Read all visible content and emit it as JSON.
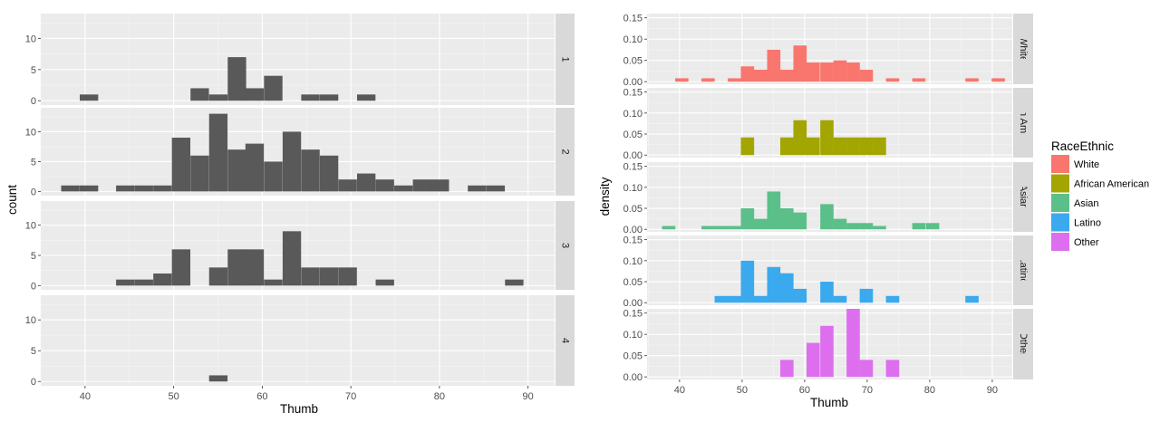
{
  "chart_data": [
    {
      "type": "histogram",
      "facet": "rows",
      "xlabel": "Thumb",
      "ylabel": "count",
      "xlim": [
        35,
        93
      ],
      "ylim": [
        -0.7,
        14
      ],
      "x_ticks": [
        40,
        50,
        60,
        70,
        80,
        90
      ],
      "y_ticks": [
        0,
        5,
        10
      ],
      "bin_width": 2.08,
      "bin_start": 37.3,
      "fill": "#595959",
      "panels": [
        {
          "label": "1",
          "bins": [
            [
              39.4,
              1
            ],
            [
              51.9,
              2
            ],
            [
              54.0,
              1
            ],
            [
              56.1,
              7
            ],
            [
              58.1,
              2
            ],
            [
              60.2,
              4
            ],
            [
              64.4,
              1
            ],
            [
              66.5,
              1
            ],
            [
              70.7,
              1
            ]
          ]
        },
        {
          "label": "2",
          "bins": [
            [
              37.3,
              1
            ],
            [
              39.4,
              1
            ],
            [
              43.5,
              1
            ],
            [
              45.6,
              1
            ],
            [
              47.7,
              1
            ],
            [
              49.8,
              9
            ],
            [
              51.9,
              6
            ],
            [
              54.0,
              13
            ],
            [
              56.1,
              7
            ],
            [
              58.1,
              8
            ],
            [
              60.2,
              5
            ],
            [
              62.3,
              10
            ],
            [
              64.4,
              7
            ],
            [
              66.5,
              6
            ],
            [
              68.6,
              2
            ],
            [
              70.7,
              3
            ],
            [
              72.8,
              2
            ],
            [
              74.9,
              1
            ],
            [
              77.0,
              2
            ],
            [
              79.0,
              2
            ],
            [
              83.2,
              1
            ],
            [
              85.3,
              1
            ]
          ]
        },
        {
          "label": "3",
          "bins": [
            [
              43.5,
              1
            ],
            [
              45.6,
              1
            ],
            [
              47.7,
              2
            ],
            [
              49.8,
              6
            ],
            [
              54.0,
              3
            ],
            [
              56.1,
              6
            ],
            [
              58.1,
              6
            ],
            [
              60.2,
              1
            ],
            [
              62.3,
              9
            ],
            [
              64.4,
              3
            ],
            [
              66.5,
              3
            ],
            [
              68.6,
              3
            ],
            [
              72.8,
              1
            ],
            [
              87.4,
              1
            ]
          ]
        },
        {
          "label": "4",
          "bins": [
            [
              54.0,
              1
            ]
          ]
        }
      ]
    },
    {
      "type": "histogram",
      "facet": "rows",
      "xlabel": "Thumb",
      "ylabel": "density",
      "xlim": [
        34.8,
        93.2
      ],
      "ylim": [
        -0.006,
        0.16
      ],
      "x_ticks": [
        40,
        50,
        60,
        70,
        80,
        90
      ],
      "y_ticks": [
        0.0,
        0.05,
        0.1,
        0.15
      ],
      "y_tick_labels": [
        "0.00",
        "0.05",
        "0.10",
        "0.15"
      ],
      "bin_width": 2.12,
      "legend": {
        "title": "RaceEthnic",
        "position": "right",
        "entries": [
          {
            "label": "White",
            "color": "#F8766D"
          },
          {
            "label": "African American",
            "color": "#A3A500"
          },
          {
            "label": "Asian",
            "color": "#5BBF89"
          },
          {
            "label": "Latino",
            "color": "#3AA9EE"
          },
          {
            "label": "Other",
            "color": "#DD6FEF"
          }
        ]
      },
      "panels": [
        {
          "label": "White",
          "color": "#F8766D",
          "bins": [
            [
              39.3,
              0.008
            ],
            [
              43.5,
              0.008
            ],
            [
              47.7,
              0.008
            ],
            [
              49.8,
              0.036
            ],
            [
              51.9,
              0.028
            ],
            [
              54.0,
              0.075
            ],
            [
              56.1,
              0.028
            ],
            [
              58.2,
              0.085
            ],
            [
              60.3,
              0.045
            ],
            [
              62.5,
              0.045
            ],
            [
              64.6,
              0.05
            ],
            [
              66.7,
              0.045
            ],
            [
              68.8,
              0.028
            ],
            [
              73.0,
              0.008
            ],
            [
              77.2,
              0.008
            ],
            [
              85.7,
              0.008
            ],
            [
              89.9,
              0.008
            ]
          ]
        },
        {
          "label": "African American",
          "color": "#A3A500",
          "bins": [
            [
              49.8,
              0.042
            ],
            [
              56.1,
              0.042
            ],
            [
              58.2,
              0.083
            ],
            [
              60.3,
              0.042
            ],
            [
              62.5,
              0.083
            ],
            [
              64.6,
              0.042
            ],
            [
              66.7,
              0.042
            ],
            [
              68.8,
              0.042
            ],
            [
              70.9,
              0.042
            ]
          ]
        },
        {
          "label": "Asian",
          "color": "#5BBF89",
          "bins": [
            [
              37.2,
              0.008
            ],
            [
              43.5,
              0.008
            ],
            [
              45.6,
              0.008
            ],
            [
              47.7,
              0.008
            ],
            [
              49.8,
              0.05
            ],
            [
              51.9,
              0.025
            ],
            [
              54.0,
              0.09
            ],
            [
              56.1,
              0.05
            ],
            [
              58.2,
              0.04
            ],
            [
              62.5,
              0.06
            ],
            [
              64.6,
              0.025
            ],
            [
              66.7,
              0.015
            ],
            [
              68.8,
              0.015
            ],
            [
              70.9,
              0.008
            ],
            [
              77.2,
              0.015
            ],
            [
              79.4,
              0.015
            ]
          ]
        },
        {
          "label": "Latino",
          "color": "#3AA9EE",
          "bins": [
            [
              45.6,
              0.016
            ],
            [
              47.7,
              0.016
            ],
            [
              49.8,
              0.1
            ],
            [
              51.9,
              0.016
            ],
            [
              54.0,
              0.085
            ],
            [
              56.1,
              0.07
            ],
            [
              58.2,
              0.033
            ],
            [
              62.5,
              0.05
            ],
            [
              64.6,
              0.016
            ],
            [
              68.8,
              0.033
            ],
            [
              73.0,
              0.016
            ],
            [
              85.7,
              0.016
            ]
          ]
        },
        {
          "label": "Other",
          "color": "#DD6FEF",
          "bins": [
            [
              56.1,
              0.04
            ],
            [
              60.3,
              0.08
            ],
            [
              62.5,
              0.12
            ],
            [
              66.7,
              0.16
            ],
            [
              68.8,
              0.04
            ],
            [
              73.0,
              0.04
            ]
          ]
        }
      ]
    }
  ]
}
